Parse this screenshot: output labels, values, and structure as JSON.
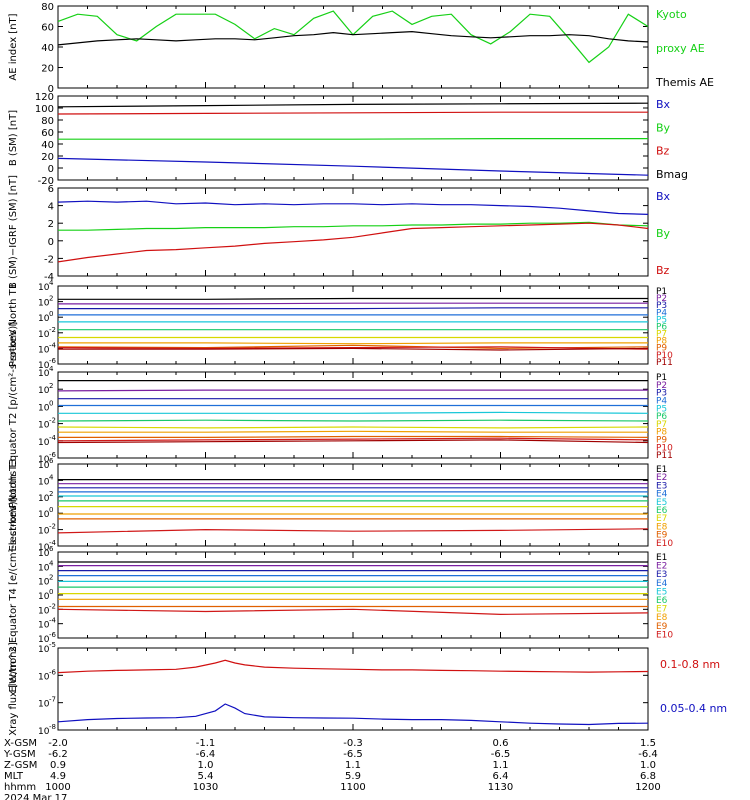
{
  "colors": {
    "black": "#000000",
    "red": "#d01010",
    "green": "#16d016",
    "blue": "#1010c0",
    "P1": "#000000",
    "P2": "#7a1fa0",
    "P3": "#1a1aa8",
    "P4": "#1f6fd8",
    "P5": "#19c7d8",
    "P6": "#19c86a",
    "P7": "#d8d800",
    "P8": "#f0a000",
    "P9": "#e06000",
    "P10": "#d01818",
    "P11": "#a00000"
  },
  "chart_data": [
    {
      "type": "line",
      "ylabel": "AE index [nT]",
      "ylim": [
        0,
        80
      ],
      "yticks": [
        "0",
        "20",
        "40",
        "60",
        "80"
      ],
      "x": [
        1000,
        1004,
        1008,
        1012,
        1016,
        1020,
        1024,
        1028,
        1032,
        1036,
        1040,
        1044,
        1048,
        1052,
        1056,
        1100,
        1104,
        1108,
        1112,
        1116,
        1120,
        1124,
        1128,
        1132,
        1136,
        1140,
        1144,
        1148,
        1152,
        1156,
        1200
      ],
      "series": [
        {
          "name": "Kyoto proxy AE",
          "color": "green",
          "values": [
            65,
            72,
            70,
            52,
            46,
            60,
            72,
            72,
            72,
            62,
            48,
            58,
            52,
            68,
            75,
            52,
            70,
            75,
            62,
            70,
            72,
            52,
            43,
            55,
            72,
            70,
            48,
            25,
            40,
            72,
            60
          ]
        },
        {
          "name": "Themis AE",
          "color": "black",
          "values": [
            42,
            44,
            46,
            47,
            48,
            47,
            46,
            47,
            48,
            48,
            47,
            49,
            51,
            52,
            54,
            52,
            53,
            54,
            55,
            53,
            51,
            50,
            49,
            50,
            51,
            51,
            52,
            51,
            48,
            46,
            45
          ]
        }
      ]
    },
    {
      "type": "line",
      "ylabel": "B (SM) [nT]",
      "ylim": [
        -20,
        120
      ],
      "yticks": [
        "-20",
        "0",
        "20",
        "40",
        "60",
        "80",
        "100",
        "120"
      ],
      "x": [
        1000,
        1030,
        1100,
        1130,
        1200
      ],
      "series": [
        {
          "name": "Bx",
          "color": "blue",
          "values": [
            16,
            10,
            3,
            -5,
            -12
          ]
        },
        {
          "name": "By",
          "color": "green",
          "values": [
            48,
            48,
            48,
            49,
            49
          ]
        },
        {
          "name": "Bz",
          "color": "red",
          "values": [
            90,
            91,
            92,
            93,
            93
          ]
        },
        {
          "name": "Bmag",
          "color": "black",
          "values": [
            102,
            104,
            106,
            107,
            108
          ]
        }
      ]
    },
    {
      "type": "line",
      "ylabel": "B (SM)−IGRF (SM) [nT]",
      "ylim": [
        -4,
        6
      ],
      "yticks": [
        "-4",
        "-2",
        "0",
        "2",
        "4",
        "6"
      ],
      "x": [
        1000,
        1006,
        1012,
        1018,
        1024,
        1030,
        1036,
        1042,
        1048,
        1054,
        1100,
        1106,
        1112,
        1118,
        1124,
        1130,
        1136,
        1142,
        1148,
        1154,
        1200
      ],
      "series": [
        {
          "name": "Bx",
          "color": "blue",
          "values": [
            4.4,
            4.5,
            4.4,
            4.5,
            4.2,
            4.3,
            4.1,
            4.2,
            4.1,
            4.2,
            4.2,
            4.1,
            4.2,
            4.1,
            4.1,
            4.0,
            3.9,
            3.7,
            3.4,
            3.1,
            3.0
          ]
        },
        {
          "name": "By",
          "color": "green",
          "values": [
            1.2,
            1.2,
            1.3,
            1.4,
            1.4,
            1.5,
            1.5,
            1.5,
            1.6,
            1.6,
            1.7,
            1.7,
            1.8,
            1.8,
            1.9,
            1.9,
            2.0,
            2.0,
            2.1,
            1.8,
            1.7
          ]
        },
        {
          "name": "Bz",
          "color": "red",
          "values": [
            -2.4,
            -1.9,
            -1.5,
            -1.1,
            -1.0,
            -0.8,
            -0.6,
            -0.3,
            -0.1,
            0.1,
            0.4,
            0.9,
            1.4,
            1.5,
            1.6,
            1.7,
            1.8,
            1.9,
            2.0,
            1.8,
            1.4
          ]
        }
      ]
    },
    {
      "type": "line",
      "ylabel": "Protons North T1",
      "yscale": "log",
      "ylim_exp": [
        -6,
        4
      ],
      "yticks": [
        {
          "base": "10",
          "exp": "-6",
          "e": -6
        },
        {
          "base": "10",
          "exp": "-4",
          "e": -4
        },
        {
          "base": "10",
          "exp": "-2",
          "e": -2
        },
        {
          "base": "10",
          "exp": "0",
          "e": 0
        },
        {
          "base": "10",
          "exp": "2",
          "e": 2
        },
        {
          "base": "10",
          "exp": "4",
          "e": 4
        }
      ],
      "series_log10": [
        {
          "name": "P1",
          "values": [
            2.3,
            2.3,
            2.4,
            2.4,
            2.4
          ]
        },
        {
          "name": "P2",
          "values": [
            1.7,
            1.7,
            1.8,
            1.8,
            1.8
          ]
        },
        {
          "name": "P3",
          "values": [
            1.1,
            1.1,
            1.1,
            1.2,
            1.2
          ]
        },
        {
          "name": "P4",
          "values": [
            0.3,
            0.3,
            0.3,
            0.3,
            0.3
          ]
        },
        {
          "name": "P5",
          "values": [
            -0.6,
            -0.6,
            -0.6,
            -0.6,
            -0.6
          ]
        },
        {
          "name": "P6",
          "values": [
            -1.6,
            -1.6,
            -1.6,
            -1.6,
            -1.6
          ]
        },
        {
          "name": "P7",
          "values": [
            -2.6,
            -2.6,
            -2.6,
            -2.6,
            -2.6
          ]
        },
        {
          "name": "P8",
          "values": [
            -3.3,
            -3.3,
            -3.4,
            -3.3,
            -3.3
          ]
        },
        {
          "name": "P9",
          "values": [
            -3.8,
            -3.9,
            -3.6,
            -4.0,
            -3.8
          ]
        },
        {
          "name": "P10",
          "values": [
            -3.9,
            -4.0,
            -3.9,
            -3.8,
            -4.1
          ]
        },
        {
          "name": "P11",
          "values": [
            -4.1,
            -4.1,
            -4.0,
            -4.2,
            -4.0
          ]
        }
      ]
    },
    {
      "type": "line",
      "ylabel": "Protons Equator T2 [p/(cm²-s-sr-keV)]",
      "yscale": "log",
      "ylim_exp": [
        -6,
        4
      ],
      "yticks": [
        {
          "base": "10",
          "exp": "-6",
          "e": -6
        },
        {
          "base": "10",
          "exp": "-4",
          "e": -4
        },
        {
          "base": "10",
          "exp": "-2",
          "e": -2
        },
        {
          "base": "10",
          "exp": "0",
          "e": 0
        },
        {
          "base": "10",
          "exp": "2",
          "e": 2
        },
        {
          "base": "10",
          "exp": "4",
          "e": 4
        }
      ],
      "series_log10": [
        {
          "name": "P1",
          "values": [
            3.0,
            3.0,
            3.0,
            3.0,
            3.0
          ]
        },
        {
          "name": "P2",
          "values": [
            1.8,
            1.9,
            1.9,
            1.9,
            1.9
          ]
        },
        {
          "name": "P3",
          "values": [
            0.9,
            0.9,
            0.9,
            0.9,
            0.9
          ]
        },
        {
          "name": "P4",
          "values": [
            0.1,
            0.1,
            0.1,
            0.1,
            0.1
          ]
        },
        {
          "name": "P5",
          "values": [
            -0.8,
            -0.8,
            -0.8,
            -0.7,
            -0.8
          ]
        },
        {
          "name": "P6",
          "values": [
            -1.7,
            -1.6,
            -1.7,
            -1.6,
            -1.7
          ]
        },
        {
          "name": "P7",
          "values": [
            -2.4,
            -2.5,
            -2.4,
            -2.5,
            -2.4
          ]
        },
        {
          "name": "P8",
          "values": [
            -3.0,
            -3.0,
            -2.9,
            -3.0,
            -3.0
          ]
        },
        {
          "name": "P9",
          "values": [
            -3.6,
            -3.6,
            -3.5,
            -3.5,
            -3.6
          ]
        },
        {
          "name": "P10",
          "values": [
            -4.0,
            -3.9,
            -3.8,
            -3.7,
            -3.9
          ]
        },
        {
          "name": "P11",
          "values": [
            -4.2,
            -4.1,
            -4.0,
            -3.9,
            -4.2
          ]
        }
      ]
    },
    {
      "type": "line",
      "ylabel": "Electrons North T3",
      "yscale": "log",
      "ylim_exp": [
        -4,
        6
      ],
      "yticks": [
        {
          "base": "10",
          "exp": "-4",
          "e": -4
        },
        {
          "base": "10",
          "exp": "-2",
          "e": -2
        },
        {
          "base": "10",
          "exp": "0",
          "e": 0
        },
        {
          "base": "10",
          "exp": "2",
          "e": 2
        },
        {
          "base": "10",
          "exp": "4",
          "e": 4
        },
        {
          "base": "10",
          "exp": "6",
          "e": 6
        }
      ],
      "series_log10": [
        {
          "name": "E1",
          "values": [
            4.1,
            4.1,
            4.1,
            4.1,
            4.1
          ]
        },
        {
          "name": "E2",
          "values": [
            3.6,
            3.6,
            3.6,
            3.6,
            3.6
          ]
        },
        {
          "name": "E3",
          "values": [
            3.1,
            3.1,
            3.1,
            3.1,
            3.1
          ]
        },
        {
          "name": "E4",
          "values": [
            2.6,
            2.6,
            2.6,
            2.6,
            2.6
          ]
        },
        {
          "name": "E5",
          "values": [
            2.1,
            2.1,
            2.1,
            2.1,
            2.1
          ]
        },
        {
          "name": "E6",
          "values": [
            1.5,
            1.5,
            1.5,
            1.5,
            1.5
          ]
        },
        {
          "name": "E7",
          "values": [
            0.8,
            0.8,
            0.8,
            0.8,
            0.8
          ]
        },
        {
          "name": "E8",
          "values": [
            -0.1,
            -0.1,
            -0.1,
            -0.1,
            -0.1
          ]
        },
        {
          "name": "E9",
          "values": [
            -0.7,
            -0.7,
            -0.7,
            -0.7,
            -0.7
          ]
        },
        {
          "name": "E10",
          "values": [
            -2.4,
            -2.0,
            -2.2,
            -2.1,
            -1.9
          ]
        }
      ]
    },
    {
      "type": "line",
      "ylabel": "Electrons Equator T4 [e/(cm²-s-sr-keV)]",
      "yscale": "log",
      "ylim_exp": [
        -6,
        6
      ],
      "yticks": [
        {
          "base": "10",
          "exp": "-6",
          "e": -6
        },
        {
          "base": "10",
          "exp": "-4",
          "e": -4
        },
        {
          "base": "10",
          "exp": "-2",
          "e": -2
        },
        {
          "base": "10",
          "exp": "0",
          "e": 0
        },
        {
          "base": "10",
          "exp": "2",
          "e": 2
        },
        {
          "base": "10",
          "exp": "4",
          "e": 4
        },
        {
          "base": "10",
          "exp": "6",
          "e": 6
        }
      ],
      "series_log10": [
        {
          "name": "E1",
          "values": [
            4.6,
            4.6,
            4.6,
            4.6,
            4.6
          ]
        },
        {
          "name": "E2",
          "values": [
            4.1,
            4.1,
            4.1,
            4.1,
            4.1
          ]
        },
        {
          "name": "E3",
          "values": [
            3.4,
            3.4,
            3.4,
            3.4,
            3.4
          ]
        },
        {
          "name": "E4",
          "values": [
            2.7,
            2.7,
            2.7,
            2.7,
            2.7
          ]
        },
        {
          "name": "E5",
          "values": [
            1.9,
            1.9,
            1.9,
            1.9,
            1.9
          ]
        },
        {
          "name": "E6",
          "values": [
            1.1,
            1.1,
            1.1,
            1.1,
            1.1
          ]
        },
        {
          "name": "E7",
          "values": [
            0.2,
            0.2,
            0.2,
            0.2,
            0.2
          ]
        },
        {
          "name": "E8",
          "values": [
            -0.6,
            -0.6,
            -0.6,
            -0.6,
            -0.6
          ]
        },
        {
          "name": "E9",
          "values": [
            -1.6,
            -1.6,
            -1.6,
            -1.6,
            -1.6
          ]
        },
        {
          "name": "E10",
          "values": [
            -2.0,
            -2.3,
            -2.0,
            -2.7,
            -2.5
          ]
        }
      ]
    },
    {
      "type": "line",
      "ylabel": "Xray flux [W/m^2]",
      "yscale": "log",
      "ylim_exp": [
        -8,
        -5
      ],
      "yticks": [
        {
          "base": "10",
          "exp": "-8",
          "e": -8
        },
        {
          "base": "10",
          "exp": "-7",
          "e": -7
        },
        {
          "base": "10",
          "exp": "-6",
          "e": -6
        },
        {
          "base": "10",
          "exp": "-5",
          "e": -5
        }
      ],
      "x": [
        1000,
        1006,
        1012,
        1018,
        1024,
        1028,
        1032,
        1034,
        1036,
        1038,
        1042,
        1048,
        1054,
        1100,
        1106,
        1112,
        1118,
        1124,
        1130,
        1136,
        1142,
        1148,
        1154,
        1200
      ],
      "series_log10": [
        {
          "name": "0.1-0.8 nm",
          "color": "red",
          "values": [
            -5.9,
            -5.85,
            -5.82,
            -5.8,
            -5.78,
            -5.7,
            -5.55,
            -5.45,
            -5.55,
            -5.62,
            -5.7,
            -5.74,
            -5.76,
            -5.78,
            -5.8,
            -5.8,
            -5.82,
            -5.83,
            -5.85,
            -5.86,
            -5.87,
            -5.88,
            -5.87,
            -5.86
          ]
        },
        {
          "name": "0.05-0.4 nm",
          "color": "blue",
          "values": [
            -7.7,
            -7.62,
            -7.58,
            -7.56,
            -7.55,
            -7.5,
            -7.3,
            -7.05,
            -7.2,
            -7.4,
            -7.52,
            -7.55,
            -7.56,
            -7.57,
            -7.6,
            -7.62,
            -7.62,
            -7.65,
            -7.7,
            -7.75,
            -7.78,
            -7.8,
            -7.76,
            -7.75
          ]
        }
      ]
    }
  ],
  "axis": {
    "rows": [
      {
        "label": "X-GSM",
        "values": [
          "-2.0",
          "-1.1",
          "-0.3",
          "0.6",
          "1.5"
        ]
      },
      {
        "label": "Y-GSM",
        "values": [
          "-6.2",
          "-6.4",
          "-6.5",
          "-6.5",
          "-6.4"
        ]
      },
      {
        "label": "Z-GSM",
        "values": [
          "0.9",
          "1.0",
          "1.1",
          "1.1",
          "1.0"
        ]
      },
      {
        "label": "MLT",
        "values": [
          "4.9",
          "5.4",
          "5.9",
          "6.4",
          "6.8"
        ]
      },
      {
        "label": "hhmm",
        "values": [
          "1000",
          "1030",
          "1100",
          "1130",
          "1200"
        ]
      }
    ],
    "date": "2024 Mar 17"
  },
  "legends": {
    "ae": [
      {
        "text": "Kyoto",
        "color": "green"
      },
      {
        "text": "proxy AE",
        "color": "green"
      },
      {
        "text": "Themis AE",
        "color": "black"
      }
    ],
    "bsm": [
      {
        "text": "Bx",
        "color": "blue"
      },
      {
        "text": "By",
        "color": "green"
      },
      {
        "text": "Bz",
        "color": "red"
      },
      {
        "text": "Bmag",
        "color": "black"
      }
    ],
    "bigrf": [
      {
        "text": "Bx",
        "color": "blue"
      },
      {
        "text": "By",
        "color": "green"
      },
      {
        "text": "Bz",
        "color": "red"
      }
    ],
    "xray": [
      {
        "text": "0.1-0.8 nm",
        "color": "red"
      },
      {
        "text": "0.05-0.4 nm",
        "color": "blue"
      }
    ]
  }
}
